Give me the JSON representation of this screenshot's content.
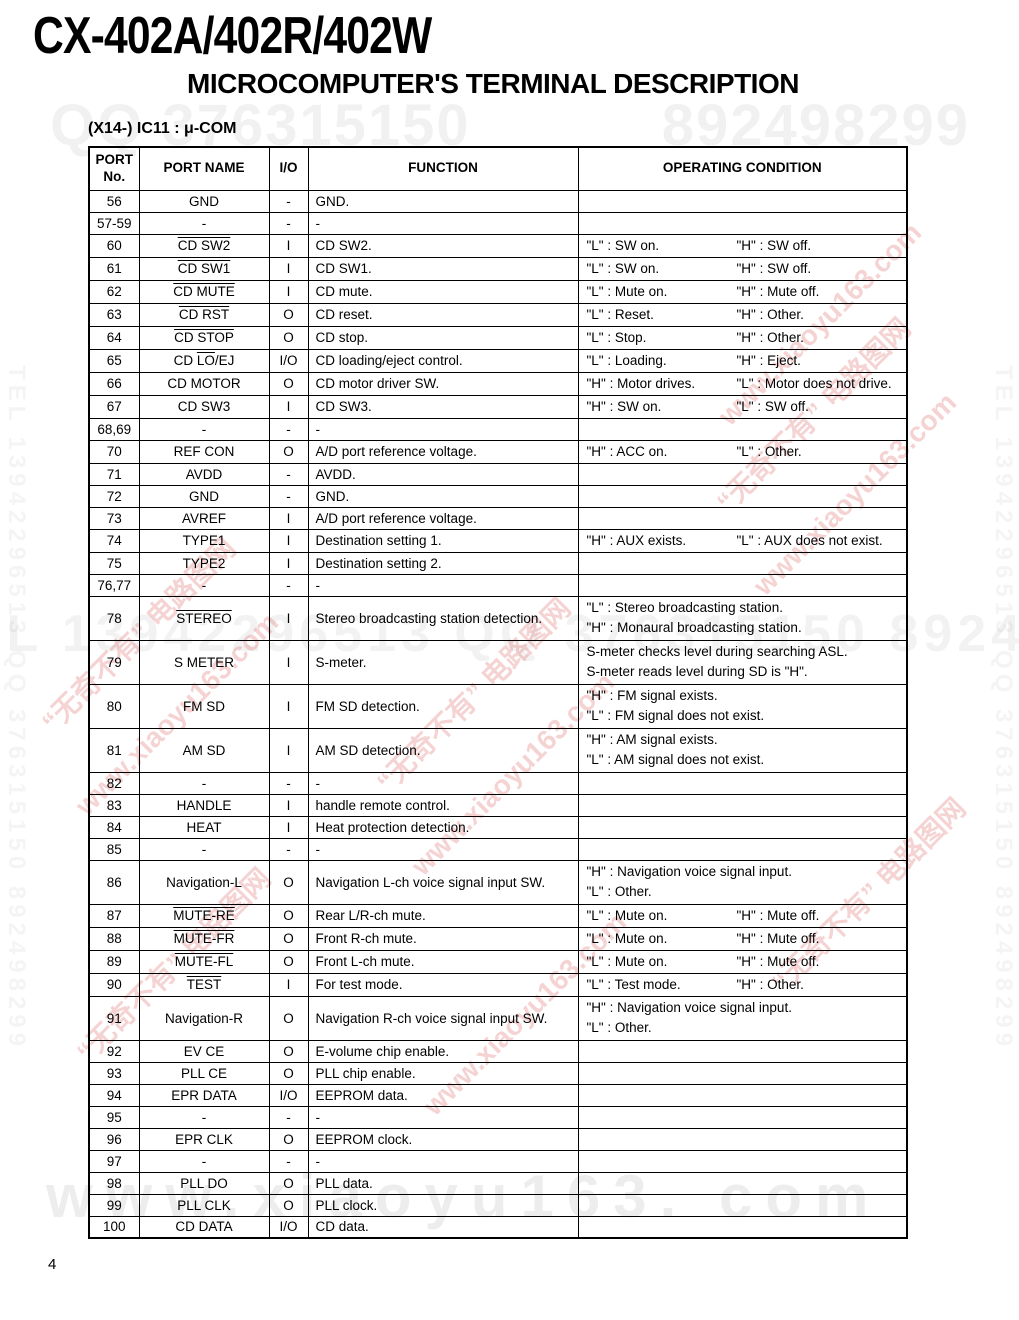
{
  "page": {
    "model": "CX-402A/402R/402W",
    "heading": "MICROCOMPUTER'S TERMINAL DESCRIPTION",
    "ic_label": "(X14-) IC11 : μ-COM",
    "page_number": "4"
  },
  "table": {
    "headers": {
      "port_no_line1": "PORT",
      "port_no_line2": "No.",
      "port_name": "PORT NAME",
      "io": "I/O",
      "function": "FUNCTION",
      "operating_condition": "OPERATING CONDITION"
    },
    "rows": [
      {
        "no": "56",
        "name": [
          {
            "t": "GND",
            "o": false
          }
        ],
        "io": "-",
        "fn": "GND.",
        "cond": []
      },
      {
        "no": "57-59",
        "name": [
          {
            "t": "-",
            "o": false
          }
        ],
        "io": "-",
        "fn": "-",
        "cond": []
      },
      {
        "no": "60",
        "name": [
          {
            "t": "CD SW2",
            "o": true
          }
        ],
        "io": "I",
        "fn": "CD SW2.",
        "cond": [
          {
            "l": "\"L\" : SW on.",
            "r": "\"H\" : SW off."
          }
        ]
      },
      {
        "no": "61",
        "name": [
          {
            "t": "CD SW1",
            "o": true
          }
        ],
        "io": "I",
        "fn": "CD SW1.",
        "cond": [
          {
            "l": "\"L\" : SW on.",
            "r": "\"H\" : SW off."
          }
        ]
      },
      {
        "no": "62",
        "name": [
          {
            "t": "CD MUTE",
            "o": true
          }
        ],
        "io": "I",
        "fn": "CD mute.",
        "cond": [
          {
            "l": "\"L\" : Mute on.",
            "r": "\"H\" : Mute off."
          }
        ]
      },
      {
        "no": "63",
        "name": [
          {
            "t": "CD RST",
            "o": true
          }
        ],
        "io": "O",
        "fn": "CD reset.",
        "cond": [
          {
            "l": "\"L\" : Reset.",
            "r": "\"H\" : Other."
          }
        ]
      },
      {
        "no": "64",
        "name": [
          {
            "t": "CD STOP",
            "o": true
          }
        ],
        "io": "O",
        "fn": "CD stop.",
        "cond": [
          {
            "l": "\"L\" : Stop.",
            "r": "\"H\" : Other."
          }
        ]
      },
      {
        "no": "65",
        "name": [
          {
            "t": "CD ",
            "o": false
          },
          {
            "t": "LO",
            "o": true
          },
          {
            "t": "/EJ",
            "o": false
          }
        ],
        "io": "I/O",
        "fn": "CD loading/eject control.",
        "cond": [
          {
            "l": "\"L\" : Loading.",
            "r": "\"H\" : Eject."
          }
        ]
      },
      {
        "no": "66",
        "name": [
          {
            "t": "CD MOTOR",
            "o": false
          }
        ],
        "io": "O",
        "fn": "CD motor driver SW.",
        "cond": [
          {
            "l": "\"H\" : Motor drives.",
            "r": "\"L\" : Motor does not drive."
          }
        ]
      },
      {
        "no": "67",
        "name": [
          {
            "t": "CD SW3",
            "o": false
          }
        ],
        "io": "I",
        "fn": "CD SW3.",
        "cond": [
          {
            "l": "\"H\" : SW on.",
            "r": "\"L\" : SW off."
          }
        ]
      },
      {
        "no": "68,69",
        "name": [
          {
            "t": "-",
            "o": false
          }
        ],
        "io": "-",
        "fn": "-",
        "cond": []
      },
      {
        "no": "70",
        "name": [
          {
            "t": "REF CON",
            "o": false
          }
        ],
        "io": "O",
        "fn": "A/D port reference voltage.",
        "cond": [
          {
            "l": "\"H\" : ACC on.",
            "r": "\"L\" : Other."
          }
        ]
      },
      {
        "no": "71",
        "name": [
          {
            "t": "AVDD",
            "o": false
          }
        ],
        "io": "-",
        "fn": "AVDD.",
        "cond": []
      },
      {
        "no": "72",
        "name": [
          {
            "t": "GND",
            "o": false
          }
        ],
        "io": "-",
        "fn": "GND.",
        "cond": []
      },
      {
        "no": "73",
        "name": [
          {
            "t": "AVREF",
            "o": false
          }
        ],
        "io": "I",
        "fn": "A/D port reference voltage.",
        "cond": []
      },
      {
        "no": "74",
        "name": [
          {
            "t": "TYPE1",
            "o": false
          }
        ],
        "io": "I",
        "fn": "Destination setting 1.",
        "cond": [
          {
            "l": "\"H\" : AUX exists.",
            "r": "\"L\" : AUX does not exist."
          }
        ]
      },
      {
        "no": "75",
        "name": [
          {
            "t": "TYPE2",
            "o": false
          }
        ],
        "io": "I",
        "fn": "Destination setting 2.",
        "cond": []
      },
      {
        "no": "76,77",
        "name": [
          {
            "t": "-",
            "o": false
          }
        ],
        "io": "-",
        "fn": "-",
        "cond": []
      },
      {
        "no": "78",
        "name": [
          {
            "t": "STEREO",
            "o": true
          }
        ],
        "io": "I",
        "fn": "Stereo broadcasting station detection.",
        "cond": [
          {
            "l": "\"L\" : Stereo broadcasting station.",
            "r": ""
          },
          {
            "l": "\"H\" : Monaural broadcasting station.",
            "r": ""
          }
        ]
      },
      {
        "no": "79",
        "name": [
          {
            "t": "S METER",
            "o": false
          }
        ],
        "io": "I",
        "fn": "S-meter.",
        "cond": [
          {
            "l": "S-meter checks level during searching ASL.",
            "r": ""
          },
          {
            "l": "S-meter reads level during SD is \"H\".",
            "r": ""
          }
        ]
      },
      {
        "no": "80",
        "name": [
          {
            "t": "FM SD",
            "o": false
          }
        ],
        "io": "I",
        "fn": "FM SD detection.",
        "cond": [
          {
            "l": "\"H\" : FM signal exists.",
            "r": ""
          },
          {
            "l": "\"L\" : FM signal does not exist.",
            "r": ""
          }
        ]
      },
      {
        "no": "81",
        "name": [
          {
            "t": "AM SD",
            "o": false
          }
        ],
        "io": "I",
        "fn": "AM SD detection.",
        "cond": [
          {
            "l": "\"H\" : AM signal exists.",
            "r": ""
          },
          {
            "l": "\"L\" : AM signal does not exist.",
            "r": ""
          }
        ]
      },
      {
        "no": "82",
        "name": [
          {
            "t": "-",
            "o": false
          }
        ],
        "io": "-",
        "fn": "-",
        "cond": []
      },
      {
        "no": "83",
        "name": [
          {
            "t": "HANDLE",
            "o": false
          }
        ],
        "io": "I",
        "fn": "handle remote control.",
        "cond": []
      },
      {
        "no": "84",
        "name": [
          {
            "t": "HEAT",
            "o": false
          }
        ],
        "io": "I",
        "fn": "Heat protection detection.",
        "cond": []
      },
      {
        "no": "85",
        "name": [
          {
            "t": "-",
            "o": false
          }
        ],
        "io": "-",
        "fn": "-",
        "cond": []
      },
      {
        "no": "86",
        "name": [
          {
            "t": "Navigation-L",
            "o": false
          }
        ],
        "io": "O",
        "fn": "Navigation L-ch voice signal input SW.",
        "cond": [
          {
            "l": "\"H\" : Navigation voice signal input.",
            "r": ""
          },
          {
            "l": "\"L\" : Other.",
            "r": ""
          }
        ]
      },
      {
        "no": "87",
        "name": [
          {
            "t": "MUTE-RE",
            "o": true
          }
        ],
        "io": "O",
        "fn": "Rear L/R-ch mute.",
        "cond": [
          {
            "l": "\"L\" : Mute on.",
            "r": "\"H\" : Mute off."
          }
        ]
      },
      {
        "no": "88",
        "name": [
          {
            "t": "MUTE-FR",
            "o": true
          }
        ],
        "io": "O",
        "fn": "Front R-ch mute.",
        "cond": [
          {
            "l": "\"L\" : Mute on.",
            "r": "\"H\" : Mute off."
          }
        ]
      },
      {
        "no": "89",
        "name": [
          {
            "t": "MUTE-FL",
            "o": true
          }
        ],
        "io": "O",
        "fn": "Front L-ch mute.",
        "cond": [
          {
            "l": "\"L\" : Mute on.",
            "r": "\"H\" : Mute off."
          }
        ]
      },
      {
        "no": "90",
        "name": [
          {
            "t": "TEST",
            "o": true
          }
        ],
        "io": "I",
        "fn": "For test mode.",
        "cond": [
          {
            "l": "\"L\" : Test mode.",
            "r": "\"H\" : Other."
          }
        ]
      },
      {
        "no": "91",
        "name": [
          {
            "t": "Navigation-R",
            "o": false
          }
        ],
        "io": "O",
        "fn": "Navigation R-ch voice signal input SW.",
        "cond": [
          {
            "l": "\"H\" : Navigation voice signal input.",
            "r": ""
          },
          {
            "l": "\"L\" : Other.",
            "r": ""
          }
        ]
      },
      {
        "no": "92",
        "name": [
          {
            "t": "EV CE",
            "o": false
          }
        ],
        "io": "O",
        "fn": "E-volume chip enable.",
        "cond": []
      },
      {
        "no": "93",
        "name": [
          {
            "t": "PLL CE",
            "o": false
          }
        ],
        "io": "O",
        "fn": "PLL chip enable.",
        "cond": []
      },
      {
        "no": "94",
        "name": [
          {
            "t": "EPR DATA",
            "o": false
          }
        ],
        "io": "I/O",
        "fn": "EEPROM data.",
        "cond": []
      },
      {
        "no": "95",
        "name": [
          {
            "t": "-",
            "o": false
          }
        ],
        "io": "-",
        "fn": "-",
        "cond": []
      },
      {
        "no": "96",
        "name": [
          {
            "t": "EPR CLK",
            "o": false
          }
        ],
        "io": "O",
        "fn": "EEPROM clock.",
        "cond": []
      },
      {
        "no": "97",
        "name": [
          {
            "t": "-",
            "o": false
          }
        ],
        "io": "-",
        "fn": "-",
        "cond": []
      },
      {
        "no": "98",
        "name": [
          {
            "t": "PLL DO",
            "o": false
          }
        ],
        "io": "O",
        "fn": "PLL data.",
        "cond": []
      },
      {
        "no": "99",
        "name": [
          {
            "t": "PLL CLK",
            "o": false
          }
        ],
        "io": "O",
        "fn": "PLL clock.",
        "cond": []
      },
      {
        "no": "100",
        "name": [
          {
            "t": "CD DATA",
            "o": false
          }
        ],
        "io": "I/O",
        "fn": "CD data.",
        "cond": []
      }
    ]
  },
  "watermarks": {
    "top_left": "QQ 376315150",
    "top_right": "892498299",
    "mid": "TEL 13942296513  QQ 376315150  892498299",
    "bottom": "www.xiaoyu163. com",
    "side": "TEL 13942296513 QQ 376315150 892498299",
    "diag_a": "“无奇不有” 电路图网",
    "diag_b": "www.xiaoyu163.com",
    "pink_color": "#de6e6e",
    "gray_color": "#f0f0f0"
  }
}
